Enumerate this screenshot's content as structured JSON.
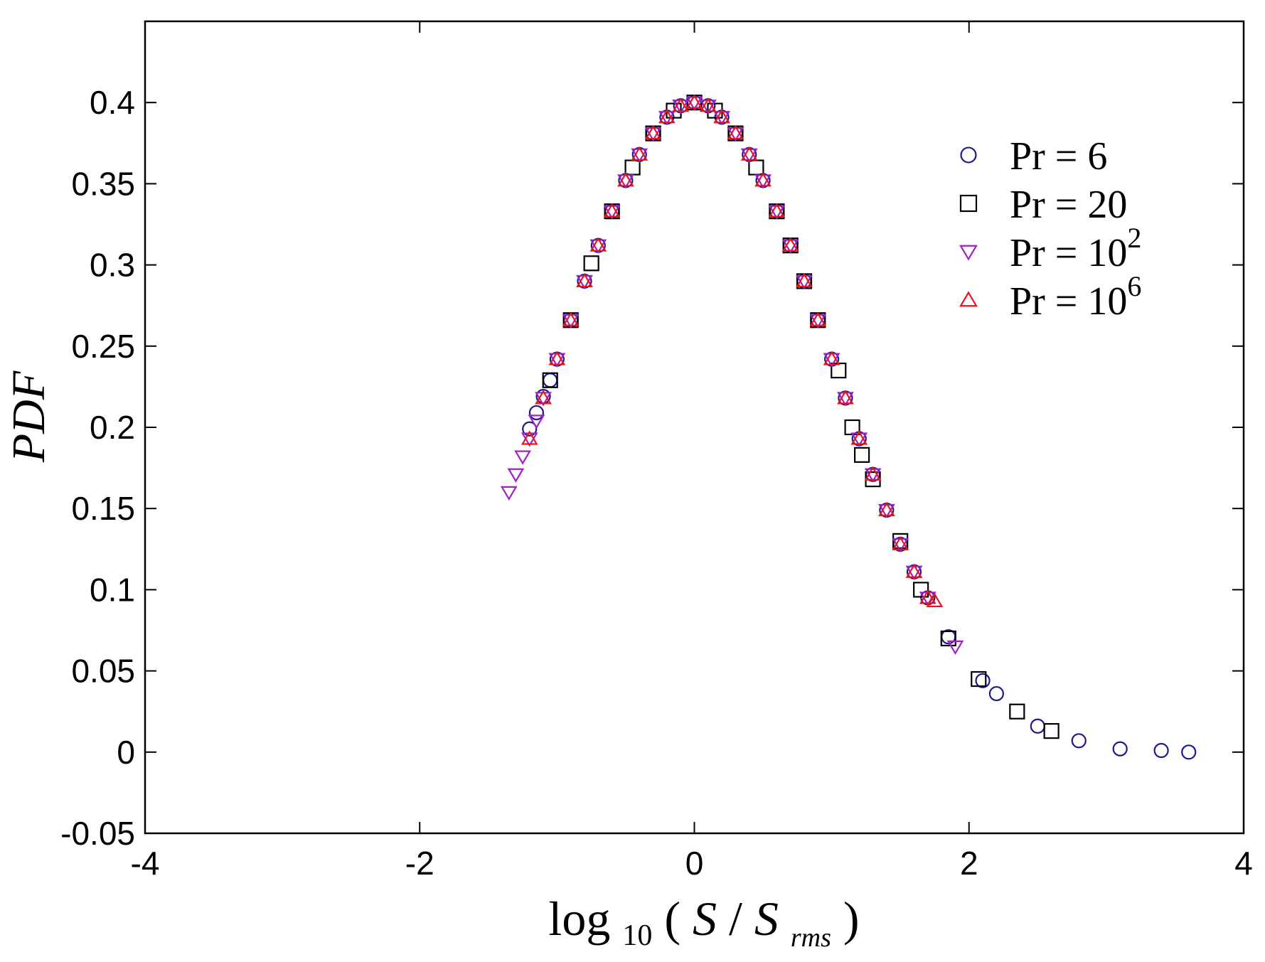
{
  "chart_data": {
    "type": "scatter",
    "xlabel": {
      "prefix": "log",
      "subscript": "10",
      "open": "(",
      "var1": "S",
      "sep": " / ",
      "var2": "S",
      "var2_subscript": "rms",
      "close": " )"
    },
    "ylabel": "PDF",
    "xlim": [
      -4,
      4
    ],
    "ylim": [
      -0.05,
      0.45
    ],
    "xticks": [
      -4,
      -2,
      0,
      2,
      4
    ],
    "xtick_labels": [
      "-4",
      "-2",
      "0",
      "2",
      "4"
    ],
    "yticks": [
      -0.05,
      0,
      0.05,
      0.1,
      0.15,
      0.2,
      0.25,
      0.3,
      0.35,
      0.4
    ],
    "ytick_labels": [
      "-0.05",
      "0",
      "0.05",
      "0.1",
      "0.15",
      "0.2",
      "0.25",
      "0.3",
      "0.35",
      "0.4"
    ],
    "grid": false,
    "legend_position": "top-right",
    "series": [
      {
        "name": "Pr = 6",
        "label_base": "Pr = 6",
        "label_exp": "",
        "marker": "circle",
        "color": "#1a1a8c",
        "x": [
          -1.2,
          -1.15,
          -1.1,
          -1.05,
          -1.0,
          -0.9,
          -0.8,
          -0.7,
          -0.6,
          -0.5,
          -0.4,
          -0.3,
          -0.2,
          -0.1,
          0.0,
          0.1,
          0.2,
          0.3,
          0.4,
          0.5,
          0.6,
          0.7,
          0.8,
          0.9,
          1.0,
          1.1,
          1.2,
          1.3,
          1.4,
          1.5,
          1.6,
          1.7,
          1.85,
          2.1,
          2.2,
          2.5,
          2.8,
          3.1,
          3.4,
          3.6
        ],
        "y": [
          0.199,
          0.209,
          0.219,
          0.229,
          0.242,
          0.266,
          0.29,
          0.312,
          0.333,
          0.352,
          0.368,
          0.381,
          0.391,
          0.398,
          0.4,
          0.398,
          0.391,
          0.381,
          0.368,
          0.352,
          0.333,
          0.312,
          0.29,
          0.266,
          0.242,
          0.218,
          0.193,
          0.171,
          0.149,
          0.128,
          0.111,
          0.095,
          0.071,
          0.044,
          0.036,
          0.016,
          0.007,
          0.002,
          0.001,
          0.0
        ]
      },
      {
        "name": "Pr = 20",
        "label_base": "Pr = 20",
        "label_exp": "",
        "marker": "square",
        "color": "#000000",
        "x": [
          -1.05,
          -0.9,
          -0.75,
          -0.6,
          -0.45,
          -0.3,
          -0.15,
          0.0,
          0.15,
          0.3,
          0.45,
          0.6,
          0.7,
          0.8,
          0.9,
          1.05,
          1.15,
          1.22,
          1.3,
          1.5,
          1.65,
          1.85,
          2.07,
          2.35,
          2.6
        ],
        "y": [
          0.229,
          0.266,
          0.301,
          0.333,
          0.36,
          0.381,
          0.395,
          0.4,
          0.395,
          0.381,
          0.36,
          0.333,
          0.312,
          0.29,
          0.266,
          0.235,
          0.2,
          0.183,
          0.168,
          0.13,
          0.1,
          0.07,
          0.045,
          0.025,
          0.013
        ]
      },
      {
        "name": "Pr = 10^2",
        "label_base": "Pr = 10",
        "label_exp": "2",
        "marker": "triangle-down",
        "color": "#a020c8",
        "x": [
          -1.35,
          -1.3,
          -1.25,
          -1.2,
          -1.15,
          -1.1,
          -1.0,
          -0.9,
          -0.8,
          -0.7,
          -0.6,
          -0.5,
          -0.4,
          -0.3,
          -0.2,
          -0.1,
          0.0,
          0.1,
          0.2,
          0.3,
          0.4,
          0.5,
          0.6,
          0.7,
          0.8,
          0.9,
          1.0,
          1.1,
          1.2,
          1.3,
          1.4,
          1.5,
          1.6,
          1.7,
          1.9
        ],
        "y": [
          0.16,
          0.171,
          0.182,
          0.193,
          0.204,
          0.218,
          0.242,
          0.266,
          0.29,
          0.312,
          0.333,
          0.352,
          0.368,
          0.381,
          0.391,
          0.398,
          0.4,
          0.398,
          0.391,
          0.381,
          0.368,
          0.352,
          0.333,
          0.312,
          0.29,
          0.266,
          0.242,
          0.218,
          0.193,
          0.171,
          0.149,
          0.128,
          0.111,
          0.095,
          0.065
        ]
      },
      {
        "name": "Pr = 10^6",
        "label_base": "Pr = 10",
        "label_exp": "6",
        "marker": "triangle-up",
        "color": "#e8161b",
        "x": [
          -1.2,
          -1.1,
          -1.0,
          -0.9,
          -0.8,
          -0.7,
          -0.6,
          -0.5,
          -0.4,
          -0.3,
          -0.2,
          -0.1,
          0.0,
          0.1,
          0.2,
          0.3,
          0.4,
          0.5,
          0.6,
          0.7,
          0.8,
          0.9,
          1.0,
          1.1,
          1.2,
          1.3,
          1.4,
          1.5,
          1.6,
          1.7,
          1.75
        ],
        "y": [
          0.193,
          0.218,
          0.242,
          0.266,
          0.29,
          0.312,
          0.333,
          0.352,
          0.368,
          0.381,
          0.391,
          0.398,
          0.4,
          0.398,
          0.391,
          0.381,
          0.368,
          0.352,
          0.333,
          0.312,
          0.29,
          0.266,
          0.242,
          0.218,
          0.193,
          0.171,
          0.149,
          0.128,
          0.111,
          0.095,
          0.093
        ]
      }
    ]
  }
}
